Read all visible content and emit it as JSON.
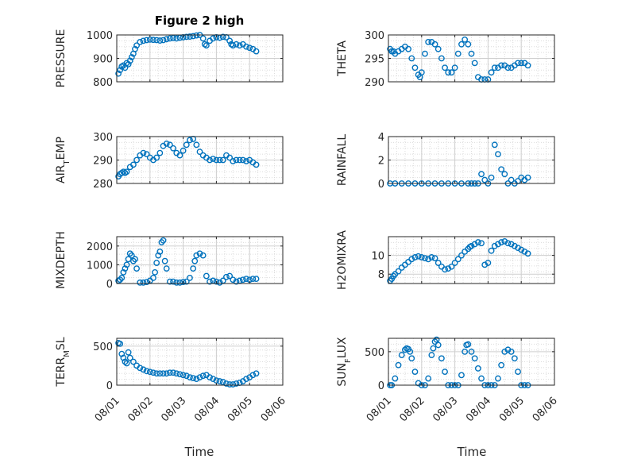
{
  "figure": {
    "title": "Figure 2 high",
    "xlabel": "Time"
  },
  "style": {
    "marker_color": "#0072BD",
    "axis_color": "#262626",
    "grid_color": "#dcdcdc"
  },
  "x_axis": {
    "ticks": [
      "08/01",
      "08/02",
      "08/03",
      "08/04",
      "08/05",
      "08/06"
    ],
    "range_days": [
      0,
      5
    ]
  },
  "chart_data": [
    {
      "type": "scatter",
      "ylabel": "PRESSURE",
      "ylim": [
        800,
        1000
      ],
      "yticks": [
        800,
        900,
        1000
      ],
      "x": [
        0.05,
        0.1,
        0.15,
        0.2,
        0.25,
        0.3,
        0.35,
        0.4,
        0.45,
        0.5,
        0.55,
        0.6,
        0.7,
        0.8,
        0.9,
        1.0,
        1.1,
        1.2,
        1.3,
        1.4,
        1.5,
        1.6,
        1.7,
        1.8,
        1.9,
        2.0,
        2.1,
        2.2,
        2.3,
        2.4,
        2.5,
        2.6,
        2.65,
        2.7,
        2.8,
        2.9,
        3.0,
        3.1,
        3.2,
        3.3,
        3.4,
        3.45,
        3.5,
        3.6,
        3.7,
        3.8,
        3.9,
        4.0,
        4.1,
        4.2
      ],
      "y": [
        835,
        850,
        865,
        870,
        860,
        880,
        875,
        890,
        905,
        920,
        940,
        955,
        970,
        975,
        978,
        980,
        979,
        978,
        976,
        978,
        982,
        985,
        987,
        985,
        988,
        990,
        992,
        993,
        995,
        998,
        1000,
        985,
        960,
        955,
        975,
        985,
        990,
        988,
        992,
        990,
        975,
        960,
        955,
        960,
        955,
        960,
        950,
        945,
        940,
        930
      ]
    },
    {
      "type": "scatter",
      "ylabel": "THETA",
      "ylim": [
        290,
        300
      ],
      "yticks": [
        290,
        295,
        300
      ],
      "x": [
        0.05,
        0.1,
        0.15,
        0.2,
        0.3,
        0.4,
        0.5,
        0.6,
        0.7,
        0.8,
        0.9,
        0.95,
        1.0,
        1.1,
        1.2,
        1.3,
        1.4,
        1.5,
        1.6,
        1.7,
        1.8,
        1.9,
        2.0,
        2.1,
        2.2,
        2.3,
        2.4,
        2.5,
        2.6,
        2.7,
        2.8,
        2.9,
        3.0,
        3.1,
        3.2,
        3.3,
        3.4,
        3.5,
        3.6,
        3.7,
        3.8,
        3.9,
        4.0,
        4.1,
        4.2
      ],
      "y": [
        297,
        296.5,
        296.5,
        296,
        296.5,
        297,
        297.5,
        297,
        295,
        293,
        291.5,
        291,
        292,
        296,
        298.5,
        298.5,
        298,
        297,
        295,
        293,
        292,
        292,
        293,
        296,
        298,
        299,
        298,
        296,
        294,
        291,
        290.5,
        290.5,
        290.5,
        292,
        293,
        293,
        293.5,
        293.5,
        293,
        293,
        293.5,
        294,
        294,
        294,
        293.5
      ]
    },
    {
      "type": "scatter",
      "ylabel": "AIR_TEMP",
      "ylim": [
        280,
        300
      ],
      "yticks": [
        280,
        290,
        300
      ],
      "x": [
        0.05,
        0.1,
        0.15,
        0.2,
        0.25,
        0.3,
        0.4,
        0.5,
        0.6,
        0.7,
        0.8,
        0.9,
        1.0,
        1.1,
        1.2,
        1.3,
        1.4,
        1.5,
        1.6,
        1.7,
        1.8,
        1.9,
        2.0,
        2.1,
        2.2,
        2.3,
        2.4,
        2.5,
        2.6,
        2.7,
        2.8,
        2.9,
        3.0,
        3.1,
        3.2,
        3.3,
        3.4,
        3.5,
        3.6,
        3.7,
        3.8,
        3.9,
        4.0,
        4.1,
        4.2
      ],
      "y": [
        283,
        284,
        284.5,
        285,
        284.5,
        285,
        287,
        288,
        290,
        292,
        293,
        292.5,
        291,
        290,
        291,
        293,
        296,
        297,
        296.5,
        295,
        293,
        292,
        294,
        296.5,
        298.5,
        299,
        296.5,
        293.5,
        292,
        291,
        290,
        290.5,
        290,
        290,
        290,
        292,
        291,
        289.5,
        290,
        290,
        290,
        289.5,
        290,
        289,
        288
      ]
    },
    {
      "type": "scatter",
      "ylabel": "RAINFALL",
      "ylim": [
        0,
        4
      ],
      "yticks": [
        0,
        2,
        4
      ],
      "x": [
        0.05,
        0.2,
        0.4,
        0.6,
        0.8,
        1.0,
        1.2,
        1.4,
        1.6,
        1.8,
        2.0,
        2.2,
        2.4,
        2.5,
        2.6,
        2.7,
        2.8,
        2.9,
        3.0,
        3.1,
        3.2,
        3.3,
        3.4,
        3.5,
        3.6,
        3.7,
        3.8,
        3.9,
        4.0,
        4.1,
        4.2
      ],
      "y": [
        0,
        0,
        0,
        0,
        0,
        0,
        0,
        0,
        0,
        0,
        0,
        0,
        0,
        0,
        0,
        0,
        0.8,
        0.3,
        0,
        0.5,
        3.3,
        2.5,
        1.2,
        0.8,
        0,
        0.3,
        0,
        0.2,
        0.5,
        0.3,
        0.5
      ]
    },
    {
      "type": "scatter",
      "ylabel": "MIXDEPTH",
      "ylim": [
        0,
        2500
      ],
      "yticks": [
        0,
        1000,
        2000
      ],
      "x": [
        0.05,
        0.1,
        0.15,
        0.2,
        0.25,
        0.3,
        0.35,
        0.4,
        0.45,
        0.5,
        0.55,
        0.6,
        0.7,
        0.8,
        0.9,
        1.0,
        1.1,
        1.15,
        1.2,
        1.25,
        1.3,
        1.35,
        1.4,
        1.45,
        1.5,
        1.6,
        1.7,
        1.8,
        1.9,
        2.0,
        2.1,
        2.2,
        2.3,
        2.35,
        2.4,
        2.5,
        2.6,
        2.7,
        2.8,
        2.9,
        3.0,
        3.1,
        3.2,
        3.3,
        3.4,
        3.5,
        3.6,
        3.7,
        3.8,
        3.9,
        4.0,
        4.1,
        4.2
      ],
      "y": [
        150,
        200,
        300,
        600,
        800,
        1000,
        1300,
        1600,
        1500,
        1200,
        1300,
        800,
        50,
        50,
        80,
        150,
        300,
        600,
        1100,
        1500,
        1700,
        2200,
        2300,
        1200,
        800,
        100,
        100,
        50,
        50,
        80,
        100,
        300,
        800,
        1200,
        1500,
        1600,
        1500,
        400,
        100,
        150,
        100,
        50,
        150,
        350,
        400,
        200,
        100,
        150,
        200,
        250,
        200,
        250,
        250
      ]
    },
    {
      "type": "scatter",
      "ylabel": "H2OMIXRA",
      "ylim": [
        7,
        12
      ],
      "yticks": [
        8,
        10
      ],
      "x": [
        0.05,
        0.1,
        0.15,
        0.2,
        0.3,
        0.4,
        0.5,
        0.6,
        0.7,
        0.8,
        0.9,
        1.0,
        1.1,
        1.2,
        1.3,
        1.4,
        1.5,
        1.6,
        1.7,
        1.8,
        1.9,
        2.0,
        2.1,
        2.2,
        2.3,
        2.4,
        2.45,
        2.5,
        2.6,
        2.7,
        2.8,
        2.9,
        3.0,
        3.1,
        3.2,
        3.3,
        3.4,
        3.5,
        3.6,
        3.7,
        3.8,
        3.9,
        4.0,
        4.1,
        4.2
      ],
      "y": [
        7.3,
        7.5,
        7.8,
        8.0,
        8.3,
        8.7,
        9.0,
        9.3,
        9.6,
        9.8,
        9.9,
        9.8,
        9.7,
        9.6,
        9.8,
        9.7,
        9.2,
        8.8,
        8.5,
        8.6,
        8.8,
        9.2,
        9.6,
        10.0,
        10.4,
        10.7,
        10.9,
        11.0,
        11.2,
        11.4,
        11.3,
        9.0,
        9.2,
        10.5,
        11.0,
        11.2,
        11.4,
        11.5,
        11.3,
        11.2,
        11.0,
        10.8,
        10.6,
        10.4,
        10.2
      ]
    },
    {
      "type": "scatter",
      "ylabel": "TERR_MSL",
      "ylim": [
        0,
        600
      ],
      "yticks": [
        0,
        500
      ],
      "x": [
        0.05,
        0.1,
        0.15,
        0.2,
        0.25,
        0.3,
        0.35,
        0.4,
        0.5,
        0.6,
        0.7,
        0.8,
        0.9,
        1.0,
        1.1,
        1.2,
        1.3,
        1.4,
        1.5,
        1.6,
        1.7,
        1.8,
        1.9,
        2.0,
        2.1,
        2.2,
        2.3,
        2.4,
        2.5,
        2.6,
        2.7,
        2.8,
        2.9,
        3.0,
        3.1,
        3.2,
        3.3,
        3.4,
        3.5,
        3.6,
        3.7,
        3.8,
        3.9,
        4.0,
        4.1,
        4.2
      ],
      "y": [
        540,
        530,
        400,
        350,
        300,
        280,
        420,
        350,
        300,
        250,
        220,
        200,
        180,
        170,
        160,
        150,
        150,
        150,
        150,
        160,
        160,
        150,
        140,
        130,
        120,
        100,
        90,
        80,
        100,
        120,
        130,
        100,
        80,
        60,
        50,
        40,
        20,
        10,
        10,
        20,
        30,
        50,
        80,
        100,
        130,
        150
      ]
    },
    {
      "type": "scatter",
      "ylabel": "SUN_FLUX",
      "ylim": [
        0,
        700
      ],
      "yticks": [
        0,
        500
      ],
      "x": [
        0.05,
        0.1,
        0.2,
        0.3,
        0.4,
        0.5,
        0.55,
        0.6,
        0.65,
        0.7,
        0.8,
        0.9,
        1.0,
        1.1,
        1.2,
        1.3,
        1.35,
        1.4,
        1.45,
        1.5,
        1.6,
        1.7,
        1.8,
        1.9,
        2.0,
        2.1,
        2.2,
        2.3,
        2.35,
        2.4,
        2.5,
        2.6,
        2.7,
        2.8,
        2.9,
        3.0,
        3.1,
        3.2,
        3.3,
        3.4,
        3.5,
        3.6,
        3.7,
        3.8,
        3.9,
        4.0,
        4.1,
        4.2
      ],
      "y": [
        0,
        0,
        100,
        300,
        450,
        530,
        550,
        540,
        500,
        400,
        200,
        30,
        0,
        0,
        100,
        450,
        550,
        650,
        680,
        600,
        400,
        200,
        0,
        0,
        0,
        0,
        150,
        500,
        600,
        610,
        500,
        400,
        250,
        100,
        0,
        0,
        0,
        0,
        100,
        300,
        500,
        530,
        500,
        400,
        200,
        0,
        0,
        0
      ]
    }
  ]
}
